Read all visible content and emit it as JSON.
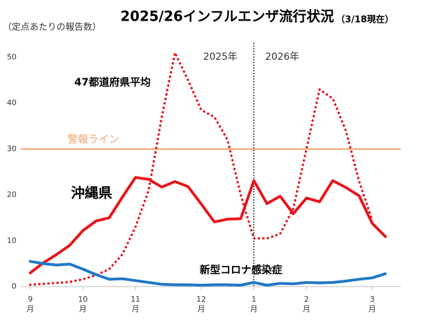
{
  "chart_data": {
    "type": "line",
    "title": "2025/26インフルエンザ流行状況",
    "subtitle": "（3/18現在）",
    "y_label": "（定点あたりの報告数）",
    "categories": [
      "9月",
      null,
      null,
      null,
      "10月",
      null,
      null,
      null,
      "11月",
      null,
      null,
      null,
      null,
      "12月",
      null,
      null,
      null,
      "1月",
      null,
      null,
      null,
      "2月",
      null,
      null,
      null,
      null,
      "3月",
      null
    ],
    "ylim": [
      0,
      55
    ],
    "yticks": [
      0,
      10,
      20,
      30,
      40,
      50
    ],
    "series": [
      {
        "name": "47都道府県平均",
        "color": "#e8141b",
        "dash": "dotted",
        "values": [
          0.4,
          0.6,
          0.8,
          1,
          1.6,
          2.5,
          3.8,
          7,
          13,
          21,
          37,
          51,
          45,
          38.5,
          37,
          32,
          20,
          10.5,
          10.5,
          11.5,
          17,
          30,
          43,
          41,
          34,
          23,
          14.5,
          null
        ]
      },
      {
        "name": "沖縄県",
        "color": "#e8141b",
        "dash": "solid",
        "values": [
          3,
          5.2,
          7,
          9,
          12.2,
          14.3,
          15,
          19.5,
          23.8,
          23.4,
          21.7,
          22.9,
          21.8,
          18,
          14.1,
          14.7,
          14.8,
          23.1,
          18.1,
          19.7,
          15.9,
          19.3,
          18.5,
          23.1,
          21.6,
          19.8,
          13.8,
          10.9
        ]
      },
      {
        "name": "新型コロナ感染症",
        "color": "#1f77c8",
        "dash": "solid",
        "values": [
          5.5,
          5,
          4.7,
          4.9,
          3.8,
          2.6,
          1.6,
          1.7,
          1.3,
          0.9,
          0.5,
          0.4,
          0.4,
          0.3,
          0.4,
          0.4,
          0.3,
          0.9,
          0.3,
          0.7,
          0.6,
          0.9,
          0.8,
          0.9,
          1.2,
          1.6,
          1.9,
          2.8
        ]
      }
    ],
    "alarm_line": {
      "label": "警報ライン",
      "value": 30,
      "color": "#f4a066"
    },
    "annotations": [
      "2025年",
      "2026年"
    ]
  }
}
